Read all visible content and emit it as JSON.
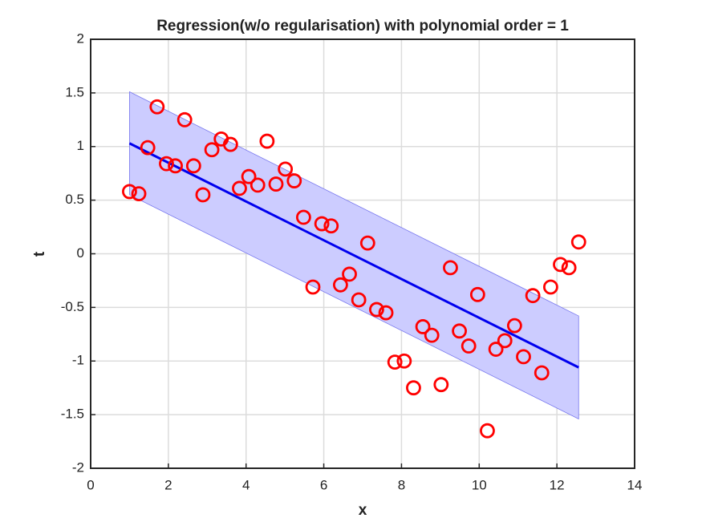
{
  "chart_data": {
    "type": "scatter",
    "title": "Regression(w/o regularisation) with polynomial order = 1",
    "x_label": "x",
    "y_label": "t",
    "xlim": [
      0,
      14
    ],
    "xticks": [
      0,
      2,
      4,
      6,
      8,
      10,
      12,
      14
    ],
    "ylim": [
      -2,
      2
    ],
    "yticks": [
      -2,
      -1.5,
      -1,
      -0.5,
      0,
      0.5,
      1,
      1.5,
      2
    ],
    "grid": true,
    "x": [
      1.0,
      1.24,
      1.47,
      1.71,
      1.95,
      2.18,
      2.42,
      2.65,
      2.89,
      3.12,
      3.36,
      3.6,
      3.83,
      4.07,
      4.3,
      4.54,
      4.77,
      5.01,
      5.24,
      5.48,
      5.72,
      5.95,
      6.19,
      6.43,
      6.66,
      6.9,
      7.13,
      7.36,
      7.6,
      7.83,
      8.07,
      8.31,
      8.55,
      8.78,
      9.02,
      9.26,
      9.49,
      9.73,
      9.96,
      10.21,
      10.43,
      10.66,
      10.91,
      11.14,
      11.38,
      11.61,
      11.84,
      12.09,
      12.31,
      12.56
    ],
    "values": [
      0.58,
      0.56,
      0.99,
      1.37,
      0.84,
      0.82,
      1.25,
      0.82,
      0.55,
      0.97,
      1.07,
      1.02,
      0.61,
      0.72,
      0.64,
      1.05,
      0.65,
      0.79,
      0.68,
      0.34,
      -0.31,
      0.28,
      0.26,
      -0.29,
      -0.19,
      -0.43,
      0.1,
      -0.52,
      -0.55,
      -1.01,
      -1.0,
      -1.25,
      -0.68,
      -0.76,
      -1.22,
      -0.13,
      -0.72,
      -0.86,
      -0.38,
      -1.65,
      -0.89,
      -0.81,
      -0.67,
      -0.96,
      -0.39,
      -1.11,
      -0.31,
      -0.1,
      -0.13,
      0.11
    ],
    "color": "#ff0000",
    "fit": {
      "x": [
        1.0,
        12.56
      ],
      "values": [
        1.03,
        -1.06
      ],
      "color": "#0000ee"
    },
    "band": {
      "x": [
        1.0,
        12.56
      ],
      "upper": [
        1.51,
        -0.58
      ],
      "lower": [
        0.55,
        -1.54
      ],
      "color": "#ccccff"
    }
  }
}
